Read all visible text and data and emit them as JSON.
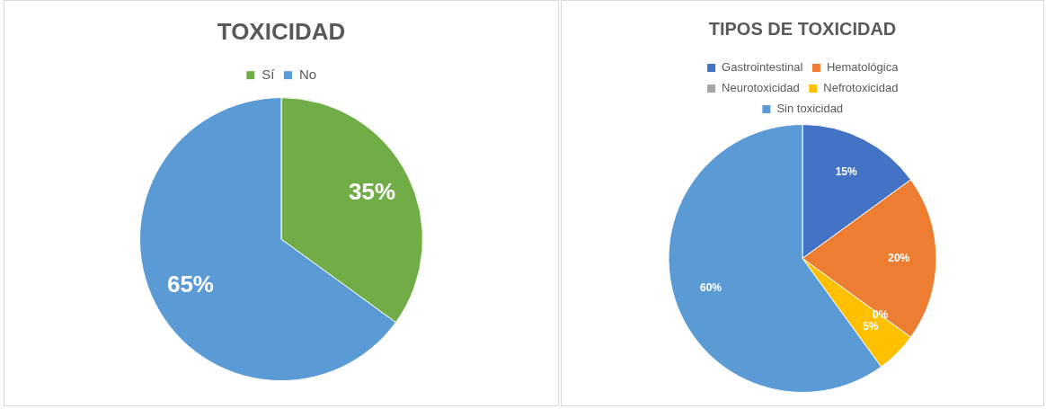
{
  "chart_data": [
    {
      "type": "pie",
      "title": "TOXICIDAD",
      "categories": [
        "Sí",
        "No"
      ],
      "values": [
        35,
        65
      ],
      "colors": [
        "#70ad47",
        "#5b9bd5"
      ],
      "value_labels": [
        "35%",
        "65%"
      ],
      "legend": "top"
    },
    {
      "type": "pie",
      "title": "TIPOS DE TOXICIDAD",
      "categories": [
        "Gastrointestinal",
        "Hematológica",
        "Neurotoxicidad",
        "Nefrotoxicidad",
        "Sin toxicidad"
      ],
      "values": [
        15,
        20,
        0,
        5,
        60
      ],
      "colors": [
        "#4472c4",
        "#ed7d31",
        "#a5a5a5",
        "#ffc000",
        "#5b9bd5"
      ],
      "value_labels": [
        "15%",
        "20%",
        "0%",
        "5%",
        "60%"
      ],
      "legend": "top"
    }
  ]
}
